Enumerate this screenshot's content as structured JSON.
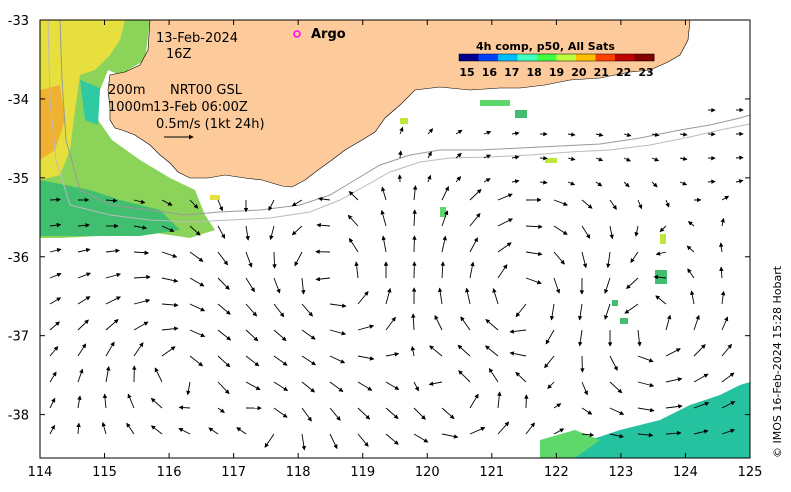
{
  "map": {
    "x_ticks": [
      "114",
      "115",
      "116",
      "117",
      "118",
      "119",
      "120",
      "121",
      "122",
      "123",
      "124",
      "125"
    ],
    "y_ticks": [
      "-33",
      "-34",
      "-35",
      "-36",
      "-37",
      "-38"
    ],
    "lon_range": [
      114,
      125
    ],
    "lat_range": [
      -38.55,
      -33
    ]
  },
  "annotations": {
    "date": "13-Feb-2024",
    "time": "16Z",
    "isobath_shallow": "200m",
    "isobath_deep": "1000m",
    "product": "NRT00 GSL",
    "product_time": "13-Feb 06:00Z",
    "scale": "0.5m/s (1kt 24h)"
  },
  "legend": {
    "argo_label": "Argo",
    "argo_color": "#ff00ff"
  },
  "colorbar": {
    "title": "4h comp, p50, All Sats",
    "ticks": [
      "15",
      "16",
      "17",
      "18",
      "19",
      "20",
      "21",
      "22",
      "23"
    ],
    "colors": [
      "#00008f",
      "#0040ff",
      "#00bfff",
      "#40ffbf",
      "#40ff40",
      "#bfff40",
      "#ffbf00",
      "#ff4000",
      "#bf0000",
      "#800000"
    ]
  },
  "colors": {
    "land": "#fdcb9b",
    "sst_warm": "#e8e23a",
    "sst_mid": "#7fd65b",
    "sst_cool": "#2fc9a3"
  },
  "credit": "© IMOS 16-Feb-2024 15:28 Hobart"
}
